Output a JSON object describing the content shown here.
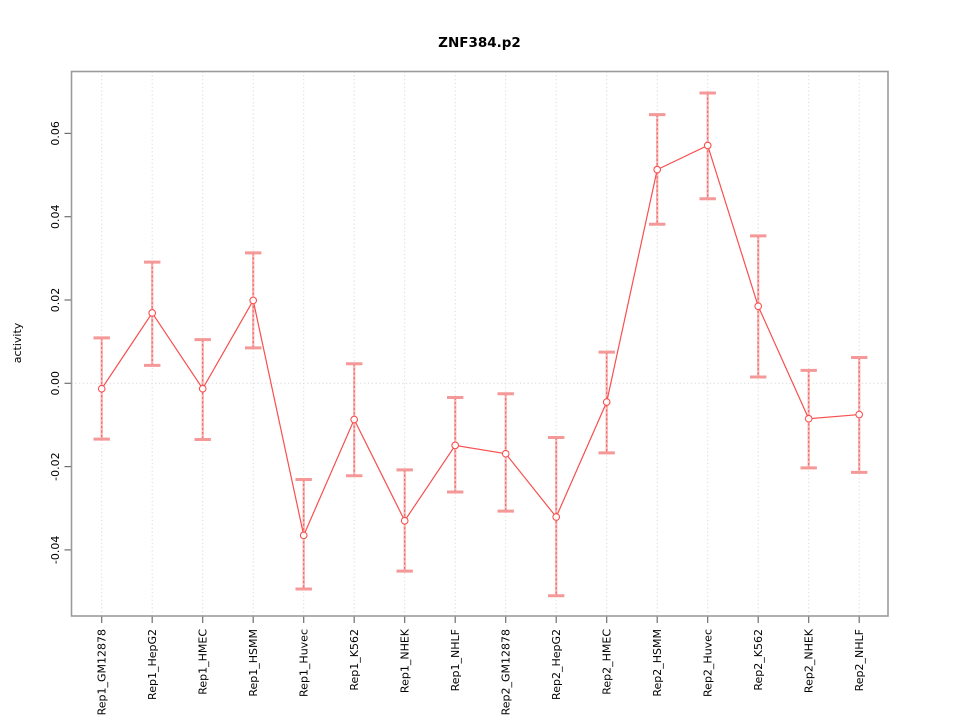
{
  "chart_data": {
    "type": "line",
    "title": "ZNF384.p2",
    "xlabel": "",
    "ylabel": "activity",
    "legend": "none",
    "grid": "dotted vertical line at each category; dotted horizontal line at y=0",
    "marker": "open-circle",
    "error_bar_style": "dashed vertical with horizontal caps",
    "ylim": [
      -0.056,
      0.0755
    ],
    "y_ticks": [
      {
        "value": 0.06,
        "label": "0.06"
      },
      {
        "value": 0.04,
        "label": "0.04"
      },
      {
        "value": 0.02,
        "label": "0.02"
      },
      {
        "value": 0.0,
        "label": "0.00"
      },
      {
        "value": -0.02,
        "label": "-0.02"
      },
      {
        "value": -0.04,
        "label": "-0.04"
      }
    ],
    "categories": [
      "Rep1_GM12878",
      "Rep1_HepG2",
      "Rep1_HMEC",
      "Rep1_HSMM",
      "Rep1_Huvec",
      "Rep1_K562",
      "Rep1_NHEK",
      "Rep1_NHLF",
      "Rep2_GM12878",
      "Rep2_HepG2",
      "Rep2_HMEC",
      "Rep2_HSMM",
      "Rep2_Huvec",
      "Rep2_K562",
      "Rep2_NHEK",
      "Rep2_NHLF"
    ],
    "series": [
      {
        "name": "activity",
        "values": [
          -0.0013,
          0.0169,
          -0.0013,
          0.0199,
          -0.0365,
          -0.0087,
          -0.033,
          -0.0149,
          -0.0169,
          -0.0321,
          -0.0045,
          0.0513,
          0.0571,
          0.0185,
          -0.0085,
          -0.0075
        ],
        "error_low": [
          -0.0134,
          0.0043,
          -0.0135,
          0.0085,
          -0.0494,
          -0.0222,
          -0.0451,
          -0.0261,
          -0.0307,
          -0.051,
          -0.0167,
          0.0382,
          0.0443,
          0.0015,
          -0.0203,
          -0.0214
        ],
        "error_high": [
          0.0109,
          0.0291,
          0.0105,
          0.0313,
          -0.0231,
          0.0047,
          -0.0208,
          -0.0034,
          -0.0025,
          -0.013,
          0.0075,
          0.0645,
          0.0697,
          0.0354,
          0.0031,
          0.0062
        ]
      }
    ],
    "colors": {
      "series_line": "#f84f4f",
      "marker_stroke": "#f84f4f",
      "error_bar_pale": "#f8bcbc",
      "error_bar_dash": "#f25f5f",
      "error_bar_cap": "#f59898",
      "grid": "#d9d9d9",
      "zero_line": "#d9d9d9",
      "box": "#9b9b9b",
      "tick": "#6e6e6e",
      "text": "#000000"
    }
  }
}
